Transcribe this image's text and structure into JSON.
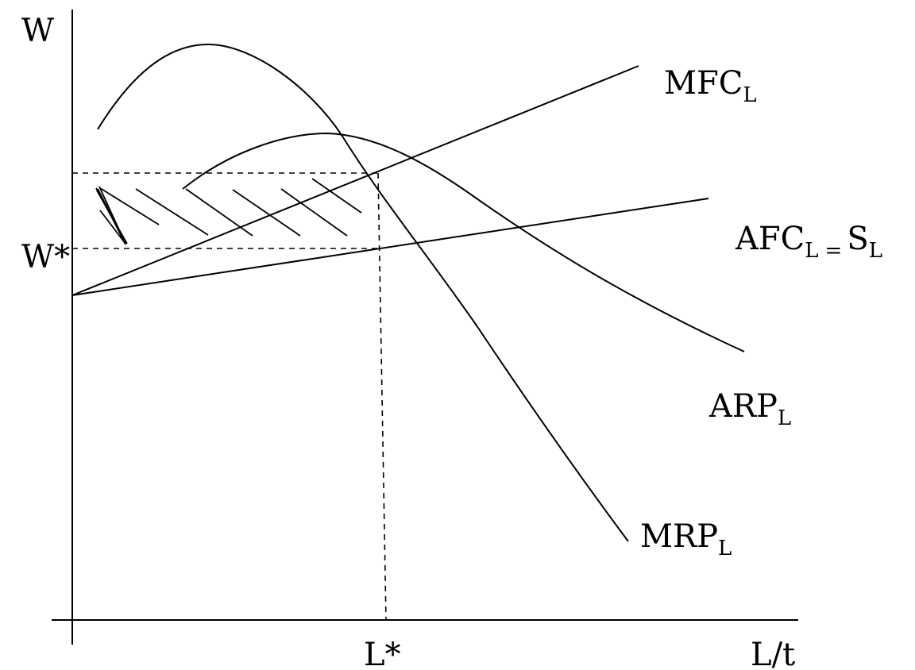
{
  "y_axis_label": "W",
  "x_axis_label": "L/t",
  "wage_marker": "W*",
  "labor_marker": "L*",
  "curves": {
    "mfc": {
      "main": "MFC",
      "sub": "L"
    },
    "afc": {
      "main": "AFC",
      "sub": "L",
      "eq": "=",
      "main2": "S",
      "sub2": "L"
    },
    "arp": {
      "main": "ARP",
      "sub": "L"
    },
    "mrp": {
      "main": "MRP",
      "sub": "L"
    }
  }
}
